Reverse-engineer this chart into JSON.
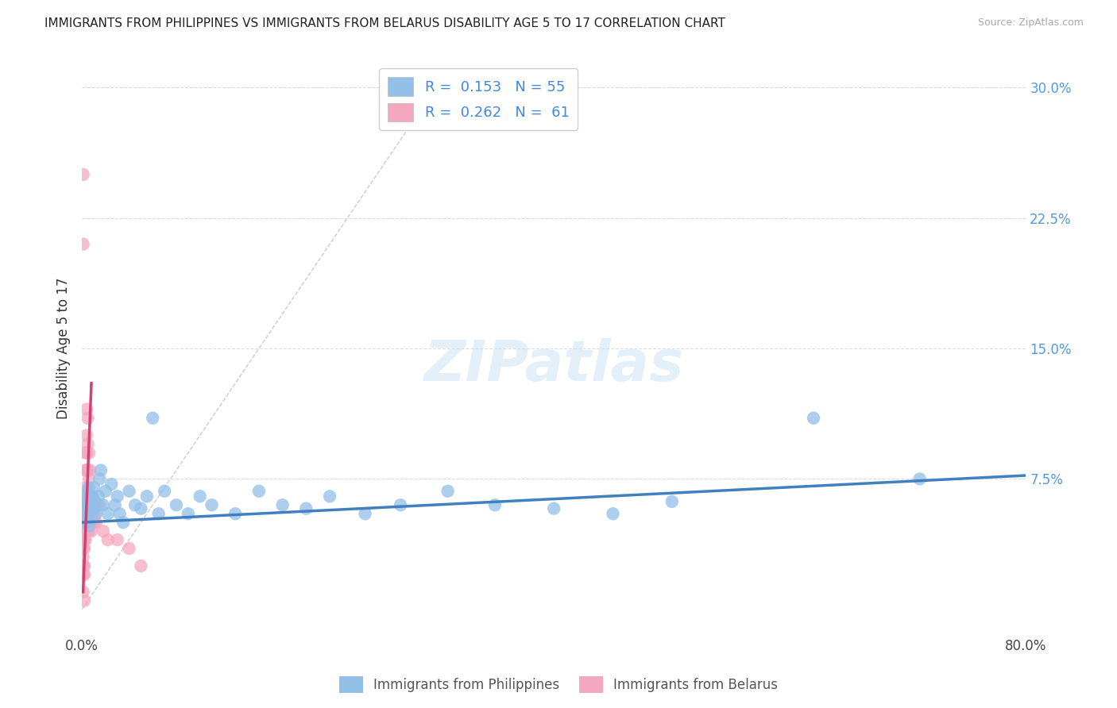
{
  "title": "IMMIGRANTS FROM PHILIPPINES VS IMMIGRANTS FROM BELARUS DISABILITY AGE 5 TO 17 CORRELATION CHART",
  "source": "Source: ZipAtlas.com",
  "ylabel": "Disability Age 5 to 17",
  "xlim": [
    0.0,
    0.8
  ],
  "ylim": [
    -0.015,
    0.315
  ],
  "xticks": [
    0.0,
    0.2,
    0.4,
    0.6,
    0.8
  ],
  "xtick_labels": [
    "0.0%",
    "",
    "",
    "",
    "80.0%"
  ],
  "ytick_positions": [
    0.075,
    0.15,
    0.225,
    0.3
  ],
  "ytick_labels": [
    "7.5%",
    "15.0%",
    "22.5%",
    "30.0%"
  ],
  "background_color": "#ffffff",
  "grid_color": "#d8d8d8",
  "blue_R": "0.153",
  "blue_N": "55",
  "pink_R": "0.262",
  "pink_N": "61",
  "blue_label": "Immigrants from Philippines",
  "pink_label": "Immigrants from Belarus",
  "blue_color": "#92c0e8",
  "pink_color": "#f4a8c0",
  "blue_line_color": "#4080c0",
  "pink_line_color": "#d44070",
  "diag_color": "#cccccc",
  "blue_x": [
    0.001,
    0.002,
    0.002,
    0.003,
    0.003,
    0.004,
    0.004,
    0.005,
    0.005,
    0.006,
    0.006,
    0.007,
    0.008,
    0.009,
    0.01,
    0.01,
    0.011,
    0.012,
    0.013,
    0.014,
    0.015,
    0.016,
    0.018,
    0.02,
    0.022,
    0.025,
    0.028,
    0.03,
    0.032,
    0.035,
    0.04,
    0.045,
    0.05,
    0.055,
    0.06,
    0.065,
    0.07,
    0.08,
    0.09,
    0.1,
    0.11,
    0.13,
    0.15,
    0.17,
    0.19,
    0.21,
    0.24,
    0.27,
    0.31,
    0.35,
    0.4,
    0.45,
    0.5,
    0.62,
    0.71
  ],
  "blue_y": [
    0.06,
    0.058,
    0.065,
    0.05,
    0.062,
    0.055,
    0.068,
    0.052,
    0.06,
    0.048,
    0.07,
    0.055,
    0.06,
    0.065,
    0.058,
    0.07,
    0.062,
    0.055,
    0.06,
    0.065,
    0.075,
    0.08,
    0.06,
    0.068,
    0.055,
    0.072,
    0.06,
    0.065,
    0.055,
    0.05,
    0.068,
    0.06,
    0.058,
    0.065,
    0.11,
    0.055,
    0.068,
    0.06,
    0.055,
    0.065,
    0.06,
    0.055,
    0.068,
    0.06,
    0.058,
    0.065,
    0.055,
    0.06,
    0.068,
    0.06,
    0.058,
    0.055,
    0.062,
    0.11,
    0.075
  ],
  "pink_x": [
    0.001,
    0.001,
    0.001,
    0.001,
    0.001,
    0.001,
    0.001,
    0.001,
    0.001,
    0.001,
    0.001,
    0.001,
    0.002,
    0.002,
    0.002,
    0.002,
    0.002,
    0.002,
    0.002,
    0.002,
    0.002,
    0.003,
    0.003,
    0.003,
    0.003,
    0.003,
    0.003,
    0.003,
    0.004,
    0.004,
    0.004,
    0.004,
    0.004,
    0.004,
    0.005,
    0.005,
    0.005,
    0.005,
    0.005,
    0.006,
    0.006,
    0.006,
    0.006,
    0.007,
    0.007,
    0.007,
    0.008,
    0.008,
    0.008,
    0.009,
    0.009,
    0.01,
    0.01,
    0.011,
    0.012,
    0.015,
    0.018,
    0.022,
    0.03,
    0.04,
    0.05
  ],
  "pink_y": [
    0.25,
    0.21,
    0.06,
    0.055,
    0.05,
    0.045,
    0.04,
    0.035,
    0.03,
    0.025,
    0.02,
    0.01,
    0.06,
    0.055,
    0.05,
    0.045,
    0.04,
    0.035,
    0.025,
    0.02,
    0.005,
    0.09,
    0.08,
    0.07,
    0.06,
    0.055,
    0.045,
    0.04,
    0.115,
    0.1,
    0.09,
    0.08,
    0.065,
    0.055,
    0.11,
    0.095,
    0.08,
    0.06,
    0.045,
    0.09,
    0.075,
    0.06,
    0.045,
    0.08,
    0.065,
    0.055,
    0.065,
    0.055,
    0.045,
    0.06,
    0.05,
    0.06,
    0.05,
    0.055,
    0.05,
    0.06,
    0.045,
    0.04,
    0.04,
    0.035,
    0.025
  ],
  "blue_trend_x": [
    0.0,
    0.8
  ],
  "blue_trend_y": [
    0.05,
    0.077
  ],
  "pink_trend_x": [
    0.001,
    0.008
  ],
  "pink_trend_y": [
    0.01,
    0.13
  ]
}
